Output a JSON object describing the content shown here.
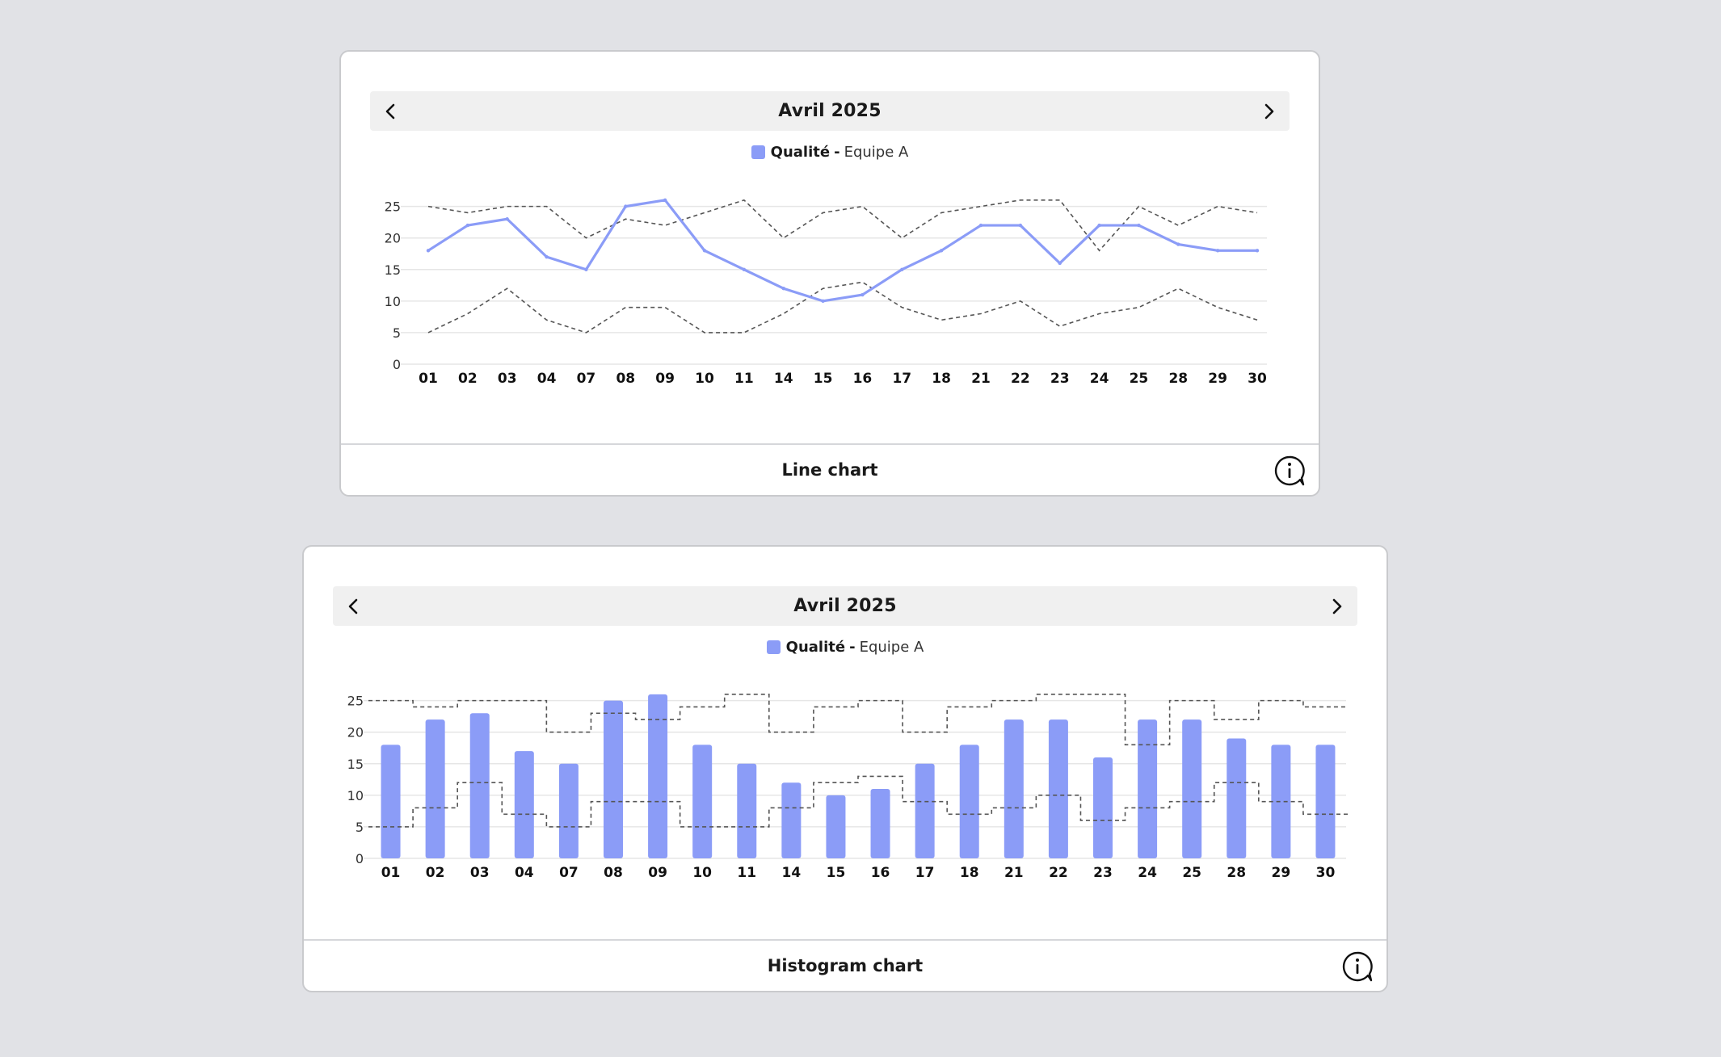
{
  "colors": {
    "series": "#8b9cf7",
    "band": "#555555",
    "grid": "#e6e6e6",
    "nav_bg": "#f0f0f0"
  },
  "icons": {
    "prev": "chevron-left-icon",
    "next": "chevron-right-icon",
    "info": "info-bubble-icon"
  },
  "line_card": {
    "nav_title": "Avril 2025",
    "legend": {
      "name": "Qualité",
      "sep": "-",
      "team": "Equipe A"
    },
    "footer_title": "Line chart"
  },
  "hist_card": {
    "nav_title": "Avril 2025",
    "legend": {
      "name": "Qualité",
      "sep": "-",
      "team": "Equipe A"
    },
    "footer_title": "Histogram chart"
  },
  "chart_data": [
    {
      "type": "line",
      "title": "Avril 2025",
      "categories": [
        "01",
        "02",
        "03",
        "04",
        "07",
        "08",
        "09",
        "10",
        "11",
        "14",
        "15",
        "16",
        "17",
        "18",
        "21",
        "22",
        "23",
        "24",
        "25",
        "28",
        "29",
        "30"
      ],
      "series": [
        {
          "name": "Qualité",
          "values": [
            18,
            22,
            23,
            17,
            15,
            25,
            26,
            18,
            15,
            12,
            10,
            11,
            15,
            18,
            22,
            22,
            16,
            22,
            22,
            19,
            18,
            18
          ]
        }
      ],
      "upper_band": [
        25,
        24,
        25,
        25,
        20,
        23,
        22,
        24,
        26,
        20,
        24,
        25,
        20,
        24,
        25,
        26,
        26,
        18,
        25,
        22,
        25,
        24
      ],
      "lower_band": [
        5,
        8,
        12,
        7,
        5,
        9,
        9,
        5,
        5,
        8,
        12,
        13,
        9,
        7,
        8,
        10,
        6,
        8,
        9,
        12,
        9,
        7
      ],
      "yticks": [
        0,
        5,
        10,
        15,
        20,
        25
      ],
      "ylim": [
        0,
        27
      ],
      "grid": true,
      "legend": "top-center"
    },
    {
      "type": "bar",
      "title": "Avril 2025",
      "categories": [
        "01",
        "02",
        "03",
        "04",
        "07",
        "08",
        "09",
        "10",
        "11",
        "14",
        "15",
        "16",
        "17",
        "18",
        "21",
        "22",
        "23",
        "24",
        "25",
        "28",
        "29",
        "30"
      ],
      "series": [
        {
          "name": "Qualité",
          "values": [
            18,
            22,
            23,
            17,
            15,
            25,
            26,
            18,
            15,
            12,
            10,
            11,
            15,
            18,
            22,
            22,
            16,
            22,
            22,
            19,
            18,
            18
          ]
        }
      ],
      "upper_band": [
        25,
        24,
        25,
        25,
        20,
        23,
        22,
        24,
        26,
        20,
        24,
        25,
        20,
        24,
        25,
        26,
        26,
        18,
        25,
        22,
        25,
        24
      ],
      "lower_band": [
        5,
        8,
        12,
        7,
        5,
        9,
        9,
        5,
        5,
        8,
        12,
        13,
        9,
        7,
        8,
        10,
        6,
        8,
        9,
        12,
        9,
        7
      ],
      "yticks": [
        0,
        5,
        10,
        15,
        20,
        25
      ],
      "ylim": [
        0,
        27
      ],
      "grid": true,
      "legend": "top-center"
    }
  ]
}
